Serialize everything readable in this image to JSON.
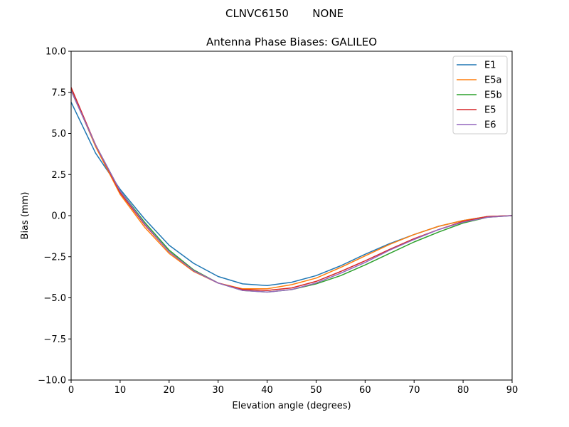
{
  "suptitle": "CLNVC6150       NONE",
  "chart_data": {
    "type": "line",
    "title": "Antenna Phase Biases: GALILEO",
    "xlabel": "Elevation angle (degrees)",
    "ylabel": "Bias (mm)",
    "xlim": [
      0,
      90
    ],
    "ylim": [
      -10,
      10
    ],
    "xticks": [
      0,
      10,
      20,
      30,
      40,
      50,
      60,
      70,
      80,
      90
    ],
    "yticks": [
      -10.0,
      -7.5,
      -5.0,
      -2.5,
      0.0,
      2.5,
      5.0,
      7.5,
      10.0
    ],
    "ytick_labels": [
      "−10.0",
      "−7.5",
      "−5.0",
      "−2.5",
      "0.0",
      "2.5",
      "5.0",
      "7.5",
      "10.0"
    ],
    "grid": false,
    "legend_position": "top-right",
    "x": [
      0,
      5,
      10,
      15,
      20,
      25,
      30,
      35,
      40,
      45,
      50,
      55,
      60,
      65,
      70,
      75,
      80,
      85,
      90
    ],
    "series": [
      {
        "name": "E1",
        "color": "#1f77b4",
        "values": [
          6.9,
          3.8,
          1.6,
          -0.2,
          -1.8,
          -2.9,
          -3.7,
          -4.15,
          -4.25,
          -4.05,
          -3.65,
          -3.05,
          -2.35,
          -1.7,
          -1.15,
          -0.65,
          -0.3,
          -0.05,
          0.0
        ]
      },
      {
        "name": "E5a",
        "color": "#ff7f0e",
        "values": [
          7.7,
          4.2,
          1.3,
          -0.7,
          -2.3,
          -3.4,
          -4.1,
          -4.45,
          -4.45,
          -4.2,
          -3.8,
          -3.15,
          -2.45,
          -1.75,
          -1.15,
          -0.65,
          -0.3,
          -0.05,
          0.0
        ]
      },
      {
        "name": "E5b",
        "color": "#2ca02c",
        "values": [
          7.6,
          4.3,
          1.5,
          -0.4,
          -2.1,
          -3.3,
          -4.1,
          -4.55,
          -4.65,
          -4.5,
          -4.15,
          -3.65,
          -3.0,
          -2.3,
          -1.6,
          -1.0,
          -0.45,
          -0.1,
          0.0
        ]
      },
      {
        "name": "E5",
        "color": "#d62728",
        "values": [
          7.8,
          4.3,
          1.4,
          -0.55,
          -2.2,
          -3.35,
          -4.1,
          -4.5,
          -4.55,
          -4.4,
          -4.0,
          -3.4,
          -2.75,
          -2.05,
          -1.4,
          -0.85,
          -0.35,
          -0.05,
          0.0
        ]
      },
      {
        "name": "E6",
        "color": "#9467bd",
        "values": [
          7.6,
          4.3,
          1.5,
          -0.5,
          -2.2,
          -3.35,
          -4.1,
          -4.55,
          -4.65,
          -4.5,
          -4.1,
          -3.5,
          -2.85,
          -2.1,
          -1.45,
          -0.85,
          -0.4,
          -0.1,
          0.0
        ]
      }
    ]
  }
}
